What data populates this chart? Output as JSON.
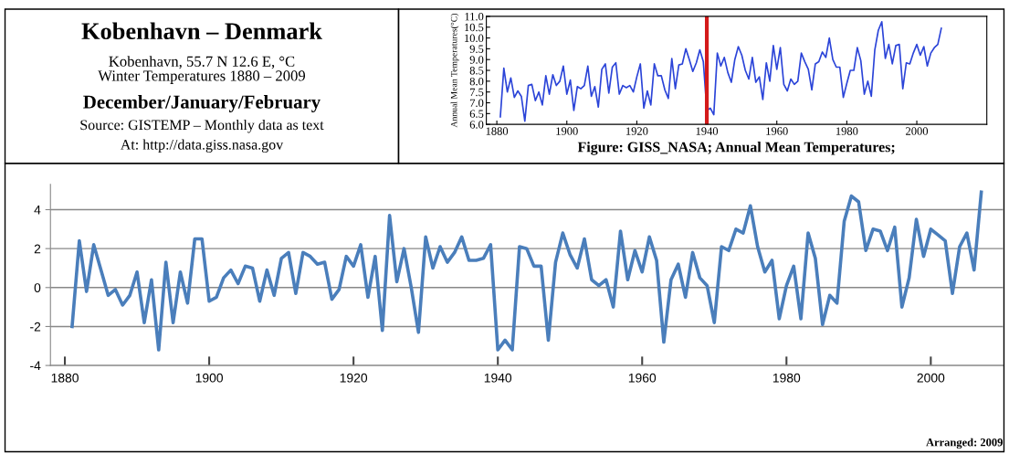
{
  "chart_data": [
    {
      "type": "other",
      "title": "Kobenhavn – Denmark",
      "subtitle": "Kobenhavn, 55.7 N 12.6 E, °C\nWinter Temperatures 1880 – 2009",
      "annotations": [
        "December/January/February",
        "Source: GISTEMP – Monthly data as text",
        "At: http://data.giss.nasa.gov"
      ]
    },
    {
      "type": "line",
      "ylabel": "Annual Mean Temperatures(°C)",
      "annotations": [
        "Figure: GISS_NASA; Annual Mean Temperatures;"
      ],
      "xlim": [
        1877,
        2020
      ],
      "xticks": [
        1880,
        1900,
        1920,
        1940,
        1960,
        1980,
        2000
      ],
      "ylim": [
        6.0,
        11.0
      ],
      "yticks": [
        {
          "value": 6.0,
          "label": "6.0"
        },
        {
          "value": 6.5,
          "label": "6.5"
        },
        {
          "value": 7.0,
          "label": "7.0"
        },
        {
          "value": 7.5,
          "label": "7.5"
        },
        {
          "value": 8.0,
          "label": "8.0"
        },
        {
          "value": 8.5,
          "label": "8.5"
        },
        {
          "value": 9.0,
          "label": "9.0"
        },
        {
          "value": 9.5,
          "label": "9.5"
        },
        {
          "value": 10.0,
          "label": "10.0"
        },
        {
          "value": 10.5,
          "label": "10.5"
        },
        {
          "value": 11.0,
          "label": "11.0"
        }
      ],
      "grid": false,
      "ref_lines": [
        {
          "axis": "x",
          "value": 1940,
          "color": "#d41a1a"
        }
      ],
      "x": [
        1881,
        1882,
        1883,
        1884,
        1885,
        1886,
        1887,
        1888,
        1889,
        1890,
        1891,
        1892,
        1893,
        1894,
        1895,
        1896,
        1897,
        1898,
        1899,
        1900,
        1901,
        1902,
        1903,
        1904,
        1905,
        1906,
        1907,
        1908,
        1909,
        1910,
        1911,
        1912,
        1913,
        1914,
        1915,
        1916,
        1917,
        1918,
        1919,
        1920,
        1921,
        1922,
        1923,
        1924,
        1925,
        1926,
        1927,
        1928,
        1929,
        1930,
        1931,
        1932,
        1933,
        1934,
        1935,
        1936,
        1937,
        1938,
        1939,
        1940,
        1941,
        1942,
        1943,
        1944,
        1945,
        1946,
        1947,
        1948,
        1949,
        1950,
        1951,
        1952,
        1953,
        1954,
        1955,
        1956,
        1957,
        1958,
        1959,
        1960,
        1961,
        1962,
        1963,
        1964,
        1965,
        1966,
        1967,
        1968,
        1969,
        1970,
        1971,
        1972,
        1973,
        1974,
        1975,
        1976,
        1977,
        1978,
        1979,
        1980,
        1981,
        1982,
        1983,
        1984,
        1985,
        1986,
        1987,
        1988,
        1989,
        1990,
        1991,
        1992,
        1993,
        1994,
        1995,
        1996,
        1997,
        1998,
        1999,
        2000,
        2001,
        2002,
        2003,
        2004,
        2005,
        2006,
        2007
      ],
      "series": [
        {
          "color": "#2b44d8",
          "values": [
            6.35,
            8.6,
            7.5,
            8.15,
            7.25,
            7.55,
            7.3,
            6.15,
            7.8,
            7.85,
            7.1,
            7.5,
            6.9,
            8.25,
            7.4,
            8.3,
            7.8,
            8.0,
            8.7,
            7.4,
            8.05,
            6.65,
            7.75,
            7.65,
            7.8,
            8.7,
            7.3,
            7.75,
            6.8,
            8.55,
            8.8,
            7.45,
            8.65,
            8.85,
            7.4,
            7.8,
            7.7,
            7.8,
            7.5,
            8.2,
            8.8,
            6.75,
            7.55,
            6.9,
            8.8,
            8.25,
            8.25,
            7.6,
            7.2,
            9.05,
            7.65,
            8.75,
            8.8,
            9.5,
            9.0,
            8.45,
            8.85,
            9.45,
            8.9,
            6.65,
            6.75,
            6.45,
            9.3,
            8.7,
            9.1,
            8.4,
            7.95,
            9.0,
            9.6,
            9.2,
            8.5,
            8.1,
            9.1,
            7.95,
            8.2,
            7.15,
            8.85,
            8.0,
            9.65,
            8.55,
            9.55,
            7.85,
            7.55,
            8.1,
            7.85,
            8.0,
            9.3,
            8.9,
            8.55,
            7.6,
            8.8,
            8.9,
            9.35,
            9.1,
            10.0,
            9.0,
            8.65,
            8.65,
            7.25,
            7.9,
            8.5,
            8.5,
            9.55,
            8.95,
            7.4,
            8.0,
            7.3,
            9.45,
            10.35,
            10.75,
            9.05,
            9.7,
            8.8,
            9.65,
            9.7,
            7.65,
            8.85,
            8.8,
            9.3,
            9.7,
            9.2,
            9.6,
            8.7,
            9.3,
            9.55,
            9.7,
            10.45
          ]
        }
      ]
    },
    {
      "type": "line",
      "annotations": [
        "Arranged: 2009"
      ],
      "xlim": [
        1878,
        2010
      ],
      "xticks": [
        1880,
        1900,
        1920,
        1940,
        1960,
        1980,
        2000
      ],
      "ylim": [
        -4,
        5.3
      ],
      "yticks": [
        -4,
        -2,
        0,
        2,
        4
      ],
      "grid": "y",
      "x": [
        1881,
        1882,
        1883,
        1884,
        1885,
        1886,
        1887,
        1888,
        1889,
        1890,
        1891,
        1892,
        1893,
        1894,
        1895,
        1896,
        1897,
        1898,
        1899,
        1900,
        1901,
        1902,
        1903,
        1904,
        1905,
        1906,
        1907,
        1908,
        1909,
        1910,
        1911,
        1912,
        1913,
        1914,
        1915,
        1916,
        1917,
        1918,
        1919,
        1920,
        1921,
        1922,
        1923,
        1924,
        1925,
        1926,
        1927,
        1928,
        1929,
        1930,
        1931,
        1932,
        1933,
        1934,
        1935,
        1936,
        1937,
        1938,
        1939,
        1940,
        1941,
        1942,
        1943,
        1944,
        1945,
        1946,
        1947,
        1948,
        1949,
        1950,
        1951,
        1952,
        1953,
        1954,
        1955,
        1956,
        1957,
        1958,
        1959,
        1960,
        1961,
        1962,
        1963,
        1964,
        1965,
        1966,
        1967,
        1968,
        1969,
        1970,
        1971,
        1972,
        1973,
        1974,
        1975,
        1976,
        1977,
        1978,
        1979,
        1980,
        1981,
        1982,
        1983,
        1984,
        1985,
        1986,
        1987,
        1988,
        1989,
        1990,
        1991,
        1992,
        1993,
        1994,
        1995,
        1996,
        1997,
        1998,
        1999,
        2000,
        2001,
        2002,
        2003,
        2004,
        2005,
        2006,
        2007
      ],
      "series": [
        {
          "color": "#4a7ebb",
          "values": [
            -2.0,
            2.4,
            -0.2,
            2.2,
            0.9,
            -0.4,
            -0.1,
            -0.9,
            -0.4,
            0.8,
            -1.8,
            0.4,
            -3.2,
            1.3,
            -1.8,
            0.8,
            -0.8,
            2.5,
            2.5,
            -0.7,
            -0.5,
            0.5,
            0.9,
            0.2,
            1.1,
            1.0,
            -0.7,
            0.9,
            -0.4,
            1.5,
            1.8,
            -0.3,
            1.8,
            1.6,
            1.2,
            1.3,
            -0.6,
            -0.1,
            1.6,
            1.1,
            2.2,
            -0.5,
            1.6,
            -2.2,
            3.7,
            0.3,
            2.0,
            0.0,
            -2.3,
            2.6,
            1.0,
            2.1,
            1.3,
            1.8,
            2.6,
            1.4,
            1.4,
            1.5,
            2.2,
            -3.2,
            -2.7,
            -3.2,
            2.1,
            2.0,
            1.1,
            1.1,
            -2.7,
            1.3,
            2.8,
            1.7,
            1.0,
            2.5,
            0.4,
            0.1,
            0.4,
            -1.0,
            2.9,
            0.4,
            1.9,
            0.8,
            2.6,
            1.4,
            -2.8,
            0.4,
            1.2,
            -0.5,
            1.8,
            0.5,
            0.1,
            -1.8,
            2.1,
            1.9,
            3.0,
            2.8,
            4.2,
            2.1,
            0.8,
            1.4,
            -1.6,
            0.1,
            1.1,
            -1.6,
            2.8,
            1.5,
            -1.9,
            -0.4,
            -0.8,
            3.4,
            4.7,
            4.4,
            1.9,
            3.0,
            2.9,
            1.9,
            3.1,
            -1.0,
            0.5,
            3.5,
            1.6,
            3.0,
            2.7,
            2.4,
            -0.3,
            2.1,
            2.8,
            0.9,
            4.9
          ]
        }
      ]
    }
  ]
}
